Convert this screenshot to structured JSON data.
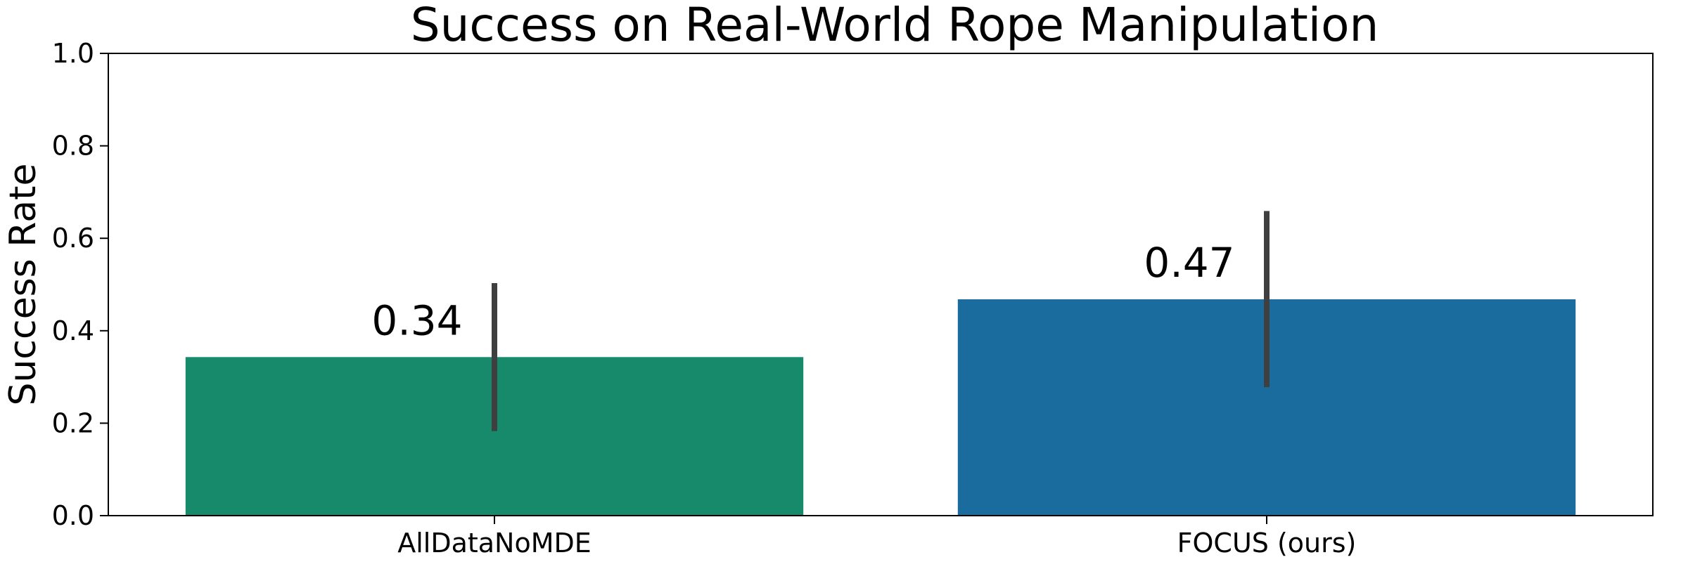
{
  "chart_data": {
    "type": "bar",
    "title": "Success on Real-World Rope Manipulation",
    "xlabel": "",
    "ylabel": "Success Rate",
    "ylim": [
      0,
      1.0
    ],
    "yticks": [
      "0.0",
      "0.2",
      "0.4",
      "0.6",
      "0.8",
      "1.0"
    ],
    "categories": [
      "AllDataNoMDE",
      "FOCUS (ours)"
    ],
    "values": [
      0.343,
      0.468
    ],
    "value_labels": [
      "0.34",
      "0.47"
    ],
    "error_bars": [
      [
        0.183,
        0.503
      ],
      [
        0.278,
        0.659
      ]
    ],
    "colors": [
      "#168a6b",
      "#1a6c9e"
    ],
    "errorbar_color": "#3f3f3f",
    "grid": false,
    "legend": "none"
  }
}
